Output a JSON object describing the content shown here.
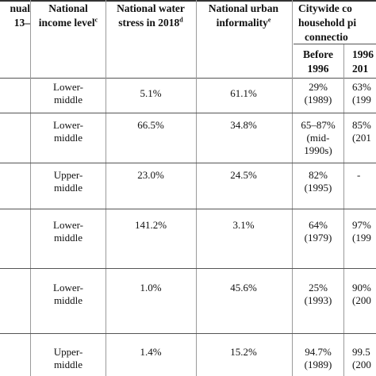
{
  "headers": {
    "col0_line1": "nual",
    "col0_line2": "13–",
    "col1_line1": "National",
    "col1_line2": "income level",
    "col1_sup": "c",
    "col2_line1": "National water",
    "col2_line2": "stress in 2018",
    "col2_sup": "d",
    "col3_line1": "National urban",
    "col3_line2": "informality",
    "col3_sup": "e",
    "group_line1": "Citywide co",
    "group_line2": "household pi",
    "group_line3": "connectio",
    "sub_before_line1": "Before",
    "sub_before_line2": "1996",
    "sub_after_line1": "1996",
    "sub_after_line2": "201"
  },
  "rows": [
    {
      "income": [
        "Lower-",
        "middle"
      ],
      "water": "5.1%",
      "informality": "61.1%",
      "before": [
        "29%",
        "(1989)"
      ],
      "after": [
        "63%",
        "(199"
      ]
    },
    {
      "income": [
        "Lower-",
        "middle"
      ],
      "water": "66.5%",
      "informality": "34.8%",
      "before": [
        "65–87%",
        "(mid-",
        "1990s)"
      ],
      "after": [
        "85%",
        "(201"
      ]
    },
    {
      "income": [
        "Upper-",
        "middle"
      ],
      "water": "23.0%",
      "informality": "24.5%",
      "before": [
        "82%",
        "(1995)"
      ],
      "after": [
        "-"
      ]
    },
    {
      "income": [
        "Lower-",
        "middle"
      ],
      "water": "141.2%",
      "informality": "3.1%",
      "before": [
        "64%",
        "(1979)"
      ],
      "after": [
        "97%",
        "(199"
      ]
    },
    {
      "income": [
        "Lower-",
        "middle"
      ],
      "water": "1.0%",
      "informality": "45.6%",
      "before": [
        "25%",
        "(1993)"
      ],
      "after": [
        "90%",
        "(200"
      ]
    },
    {
      "income": [
        "Upper-",
        "middle"
      ],
      "water": "1.4%",
      "informality": "15.2%",
      "before": [
        "94.7%",
        "(1989)"
      ],
      "after": [
        "99.5",
        "(200"
      ]
    }
  ]
}
